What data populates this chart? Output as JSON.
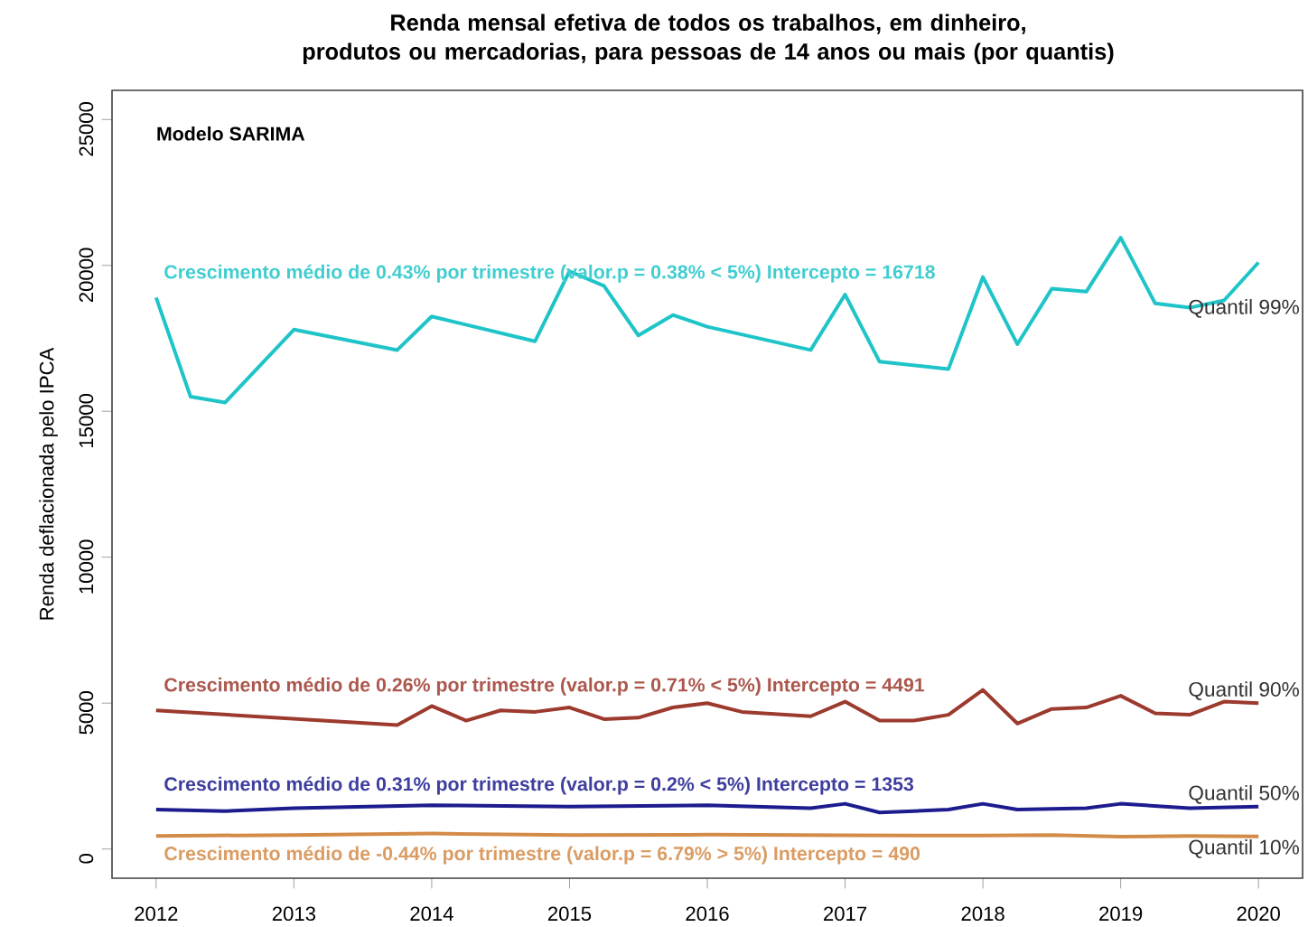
{
  "chart_data": {
    "type": "line",
    "title": "Renda mensal efetiva de todos os trabalhos, em dinheiro,\nprodutos ou mercadorias, para pessoas de 14 anos ou mais (por quantis)",
    "ylabel": "Renda deflacionada pelo IPCA",
    "xlim": [
      2011.68,
      2020.32
    ],
    "ylim": [
      -1000,
      26000
    ],
    "xticks": [
      2012,
      2013,
      2014,
      2015,
      2016,
      2017,
      2018,
      2019,
      2020
    ],
    "yticks": [
      0,
      5000,
      10000,
      15000,
      20000,
      25000
    ],
    "legend": false,
    "series": [
      {
        "name": "Quantil 99%",
        "color": "#1fc4c8",
        "x": [
          2012,
          2012.25,
          2012.5,
          2013,
          2013.75,
          2014,
          2014.75,
          2015,
          2015.25,
          2015.5,
          2015.75,
          2016,
          2016.75,
          2017,
          2017.25,
          2017.75,
          2018,
          2018.25,
          2018.5,
          2018.75,
          2019,
          2019.25,
          2019.5,
          2019.75,
          2020
        ],
        "values": [
          18900,
          15500,
          15300,
          17800,
          17100,
          18250,
          17400,
          19800,
          19300,
          17600,
          18300,
          17900,
          17100,
          19000,
          16700,
          16450,
          19600,
          17300,
          19200,
          19100,
          20950,
          18700,
          18550,
          18800,
          20100
        ]
      },
      {
        "name": "Quantil 90%",
        "color": "#9c3a2e",
        "x": [
          2012,
          2013.75,
          2014,
          2014.25,
          2014.5,
          2014.75,
          2015,
          2015.25,
          2015.5,
          2015.75,
          2016,
          2016.25,
          2016.75,
          2017,
          2017.25,
          2017.5,
          2017.75,
          2018,
          2018.25,
          2018.5,
          2018.75,
          2019,
          2019.25,
          2019.5,
          2019.75,
          2020
        ],
        "values": [
          4750,
          4250,
          4900,
          4400,
          4750,
          4700,
          4850,
          4450,
          4500,
          4850,
          5000,
          4700,
          4550,
          5050,
          4400,
          4400,
          4600,
          5450,
          4300,
          4800,
          4850,
          5250,
          4650,
          4600,
          5050,
          5000
        ]
      },
      {
        "name": "Quantil 50%",
        "color": "#1c1c8e",
        "x": [
          2012,
          2012.5,
          2013,
          2014,
          2015,
          2016,
          2016.75,
          2017,
          2017.25,
          2017.75,
          2018,
          2018.25,
          2018.75,
          2019,
          2019.5,
          2020
        ],
        "values": [
          1350,
          1300,
          1400,
          1500,
          1450,
          1500,
          1400,
          1550,
          1250,
          1350,
          1550,
          1350,
          1400,
          1550,
          1400,
          1450
        ]
      },
      {
        "name": "Quantil 10%",
        "color": "#d38b48",
        "x": [
          2012,
          2013,
          2014,
          2015,
          2016,
          2017,
          2018,
          2018.5,
          2019,
          2019.5,
          2020
        ],
        "values": [
          450,
          480,
          530,
          480,
          490,
          470,
          460,
          480,
          420,
          450,
          430
        ]
      }
    ],
    "annotations": [
      "Modelo SARIMA",
      "Crescimento médio de 0.43% por trimestre (valor.p = 0.38% < 5%)   Intercepto = 16718",
      "Crescimento médio de 0.26% por trimestre (valor.p = 0.71% < 5%) Intercepto = 4491",
      "Crescimento médio de 0.31% por trimestre (valor.p = 0.2% < 5%)   Intercepto = 1353",
      "Crescimento médio de -0.44% por trimestre (valor.p = 6.79% > 5%)   Intercepto = 490"
    ]
  }
}
